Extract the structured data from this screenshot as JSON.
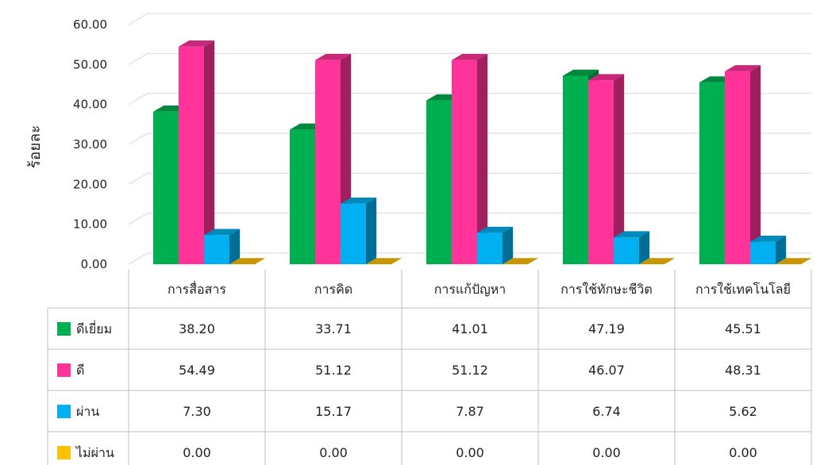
{
  "chart_data": {
    "type": "bar",
    "ylabel": "ร้อยละ",
    "ylim": [
      0,
      60
    ],
    "yticks": [
      "0.00",
      "10.00",
      "20.00",
      "30.00",
      "40.00",
      "50.00",
      "60.00"
    ],
    "grid": true,
    "categories": [
      "การสื่อสาร",
      "การคิด",
      "การแก้ปัญหา",
      "การใช้ทักษะชีวิต",
      "การใช้เทคโนโลยี"
    ],
    "series": [
      {
        "name": "ดีเยี่ยม",
        "values": [
          38.2,
          33.71,
          41.01,
          47.19,
          45.51
        ],
        "labels": [
          "38.20",
          "33.71",
          "41.01",
          "47.19",
          "45.51"
        ],
        "color": "#00B050"
      },
      {
        "name": "ดี",
        "values": [
          54.49,
          51.12,
          51.12,
          46.07,
          48.31
        ],
        "labels": [
          "54.49",
          "51.12",
          "51.12",
          "46.07",
          "48.31"
        ],
        "color": "#FF3399"
      },
      {
        "name": "ผ่าน",
        "values": [
          7.3,
          15.17,
          7.87,
          6.74,
          5.62
        ],
        "labels": [
          "7.30",
          "15.17",
          "7.87",
          "6.74",
          "5.62"
        ],
        "color": "#00B0F0"
      },
      {
        "name": "ไม่ผ่าน",
        "values": [
          0.0,
          0.0,
          0.0,
          0.0,
          0.0
        ],
        "labels": [
          "0.00",
          "0.00",
          "0.00",
          "0.00",
          "0.00"
        ],
        "color": "#FFC000"
      }
    ],
    "legend": "data-table-left"
  }
}
